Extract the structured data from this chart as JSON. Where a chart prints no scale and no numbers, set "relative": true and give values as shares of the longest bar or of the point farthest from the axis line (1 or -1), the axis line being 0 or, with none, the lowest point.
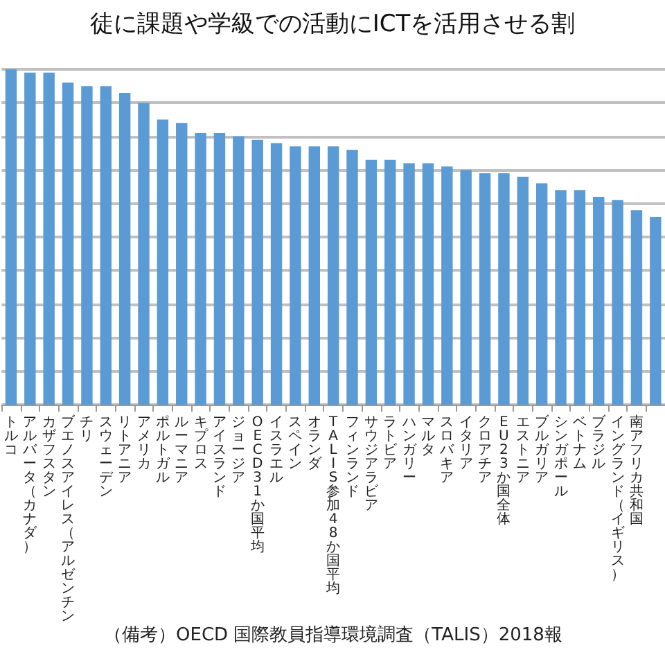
{
  "chart_data": {
    "type": "bar",
    "title": "徒に課題や学級での活動にICTを活用させる割",
    "annotations": [
      "（備考）OECD 国際教員指導環境調査（TALIS）2018報"
    ],
    "categories": [
      "トルコ",
      "アルバータ（カナダ）",
      "カザフスタン",
      "ブエノスアイレス（アルゼンチン",
      "チリ",
      "スウェーデン",
      "リトアニア",
      "アメリカ",
      "ポルトガル",
      "ルーマニア",
      "キプロス",
      "アイスランド",
      "ジョージア",
      "OECD31か国平均",
      "イスラエル",
      "スペイン",
      "オランダ",
      "TALIS 参加48 か国平均",
      "フィンランド",
      "サウジアラビア",
      "ラトビア",
      "ハンガリー",
      "マルタ",
      "スロバキア",
      "イタリア",
      "クロアチア",
      "EU23か国全体",
      "エストニア",
      "ブルガリア",
      "シンガポール",
      "ベトナム",
      "ブラジル",
      "イングランド（イギリス）",
      "南アフリカ共和国",
      null
    ],
    "values": [
      1.0,
      0.99,
      0.99,
      0.96,
      0.95,
      0.95,
      0.93,
      0.9,
      0.85,
      0.84,
      0.81,
      0.81,
      0.8,
      0.79,
      0.78,
      0.77,
      0.77,
      0.77,
      0.76,
      0.73,
      0.73,
      0.72,
      0.72,
      0.71,
      0.7,
      0.69,
      0.69,
      0.68,
      0.66,
      0.64,
      0.64,
      0.62,
      0.61,
      0.58,
      0.56
    ],
    "color": "#5b9bd5",
    "relative": true,
    "grid": true
  }
}
